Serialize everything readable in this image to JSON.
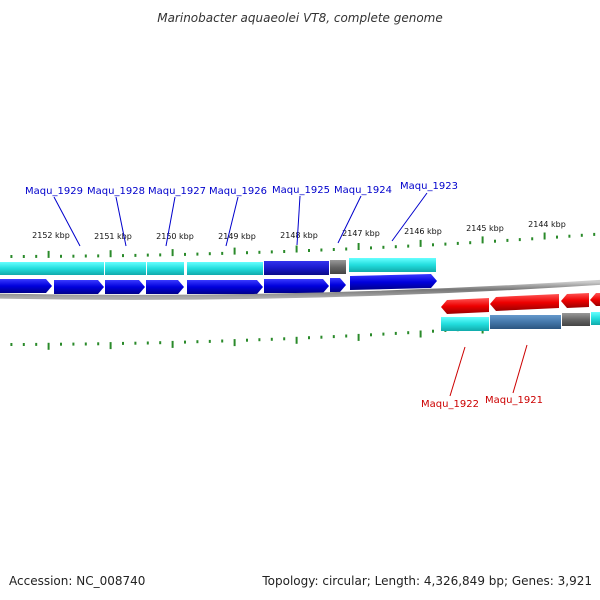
{
  "title": "Marinobacter aquaeolei VT8, complete genome",
  "footer": {
    "accession": "Accession: NC_008740",
    "summary": "Topology: circular; Length: 4,326,849 bp; Genes: 3,921"
  },
  "ticks": {
    "upper": [
      "2152 kbp",
      "2151 kbp",
      "2150 kbp",
      "2149 kbp",
      "2148 kbp",
      "2147 kbp",
      "2146 kbp",
      "2145 kbp",
      "2144 kbp"
    ]
  },
  "genes": {
    "upper_labels": [
      "Maqu_1929",
      "Maqu_1928",
      "Maqu_1927",
      "Maqu_1926",
      "Maqu_1925",
      "Maqu_1924",
      "Maqu_1923"
    ],
    "lower_labels": [
      "Maqu_1922",
      "Maqu_1921"
    ]
  },
  "colors": {
    "forward_gene": "#0000dd",
    "reverse_gene": "#ee0000",
    "cds_cyan": "#22dddd",
    "cds_dark_blue": "#1a1acc",
    "cds_steel": "#4477aa",
    "cds_gray": "#666666",
    "tick": "#2a8a2a",
    "forward_label": "#0000cc",
    "reverse_label": "#cc0000",
    "backbone": "#888888"
  }
}
